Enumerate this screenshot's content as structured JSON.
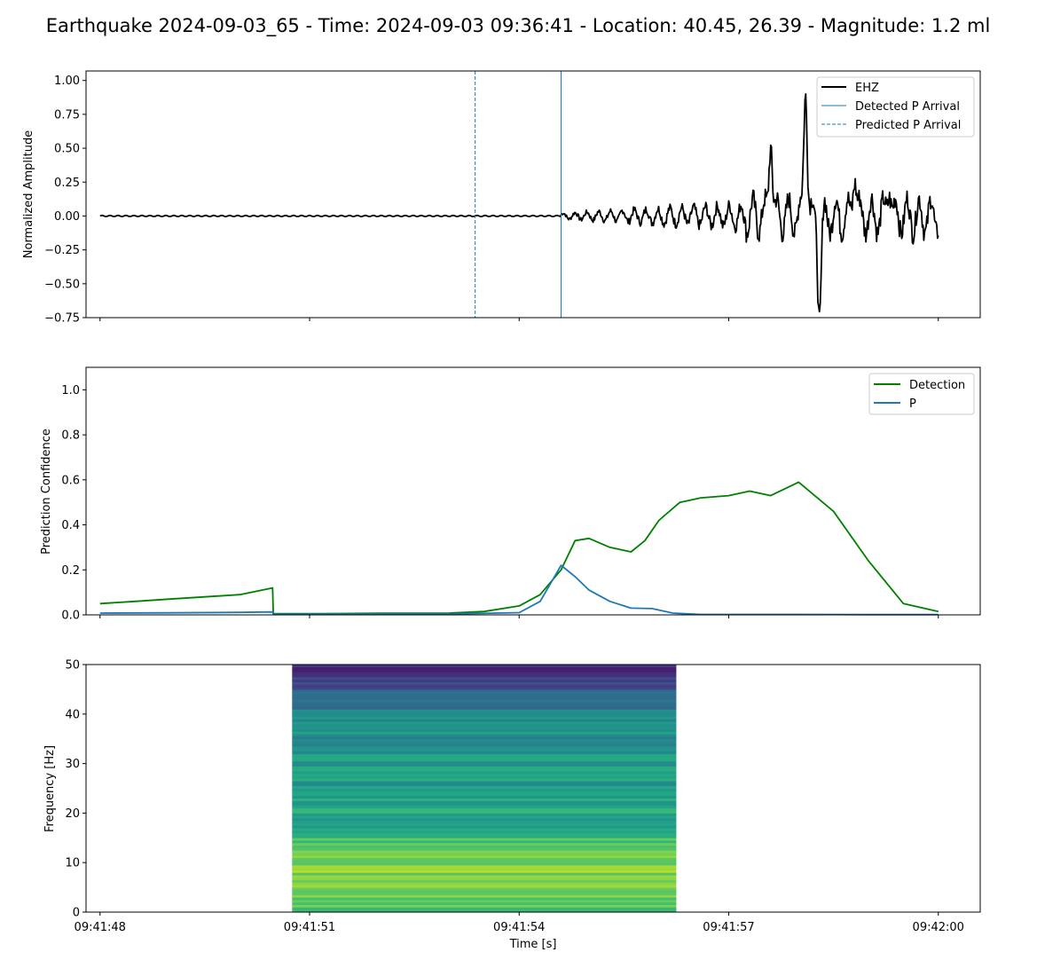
{
  "title": "Earthquake 2024-09-03_65 - Time: 2024-09-03 09:36:41 - Location: 40.45, 26.39 - Magnitude: 1.2 ml",
  "colors": {
    "waveform": "#000000",
    "detection": "#008000",
    "p_prob": "#1f77b4",
    "arrival": "#1f77b4"
  },
  "chart_data": [
    {
      "type": "line",
      "panel": "waveform",
      "ylabel": "Normalized Amplitude",
      "xlabel": "",
      "xlim": [
        -0.2,
        12.6
      ],
      "ylim": [
        -0.75,
        1.07
      ],
      "yticks": [
        "1.00",
        "0.75",
        "0.50",
        "0.25",
        "0.00",
        "−0.25",
        "−0.50",
        "−0.75"
      ],
      "ytick_values": [
        1.0,
        0.75,
        0.5,
        0.25,
        0.0,
        -0.25,
        -0.5,
        -0.75
      ],
      "legend_position": "upper right",
      "series": [
        {
          "name": "EHZ",
          "x_range": [
            0,
            12.0
          ],
          "peak_times": [
            9.6,
            10.1,
            10.3,
            10.8,
            11.3
          ],
          "peak_values": [
            0.62,
            1.0,
            -0.68,
            0.36,
            0.26
          ]
        }
      ],
      "vlines": [
        {
          "name": "Detected P Arrival",
          "x": 6.6,
          "style": "solid"
        },
        {
          "name": "Predicted P Arrival",
          "x": 5.37,
          "style": "dashed"
        }
      ]
    },
    {
      "type": "line",
      "panel": "probability",
      "ylabel": "Prediction Confidence",
      "xlabel": "",
      "xlim": [
        -0.2,
        12.6
      ],
      "ylim": [
        0.0,
        1.1
      ],
      "yticks": [
        "0.0",
        "0.2",
        "0.4",
        "0.6",
        "0.8",
        "1.0"
      ],
      "ytick_values": [
        0.0,
        0.2,
        0.4,
        0.6,
        0.8,
        1.0
      ],
      "legend_position": "upper right",
      "series": [
        {
          "name": "Detection",
          "x": [
            0,
            0.5,
            1.0,
            1.5,
            2.0,
            2.47,
            2.48,
            3.0,
            4.0,
            5.0,
            5.5,
            6.0,
            6.3,
            6.6,
            6.8,
            7.0,
            7.3,
            7.6,
            7.8,
            8.0,
            8.3,
            8.6,
            9.0,
            9.3,
            9.6,
            10.0,
            10.5,
            11.0,
            11.5,
            12.0
          ],
          "values": [
            0.05,
            0.06,
            0.07,
            0.08,
            0.09,
            0.12,
            0.005,
            0.005,
            0.007,
            0.008,
            0.015,
            0.04,
            0.09,
            0.2,
            0.33,
            0.34,
            0.3,
            0.28,
            0.33,
            0.42,
            0.5,
            0.52,
            0.53,
            0.55,
            0.53,
            0.59,
            0.46,
            0.24,
            0.05,
            0.015
          ]
        },
        {
          "name": "P",
          "x": [
            0,
            1.0,
            2.0,
            2.47,
            2.48,
            3.0,
            4.0,
            5.0,
            6.0,
            6.3,
            6.6,
            6.8,
            7.0,
            7.3,
            7.6,
            7.9,
            8.2,
            8.6,
            9.0,
            10.0,
            11.0,
            12.0
          ],
          "values": [
            0.008,
            0.009,
            0.011,
            0.013,
            0.003,
            0.003,
            0.004,
            0.004,
            0.01,
            0.06,
            0.22,
            0.17,
            0.11,
            0.06,
            0.03,
            0.028,
            0.008,
            0.002,
            0.002,
            0.002,
            0.001,
            0.001
          ]
        }
      ]
    },
    {
      "type": "heatmap",
      "panel": "spectrogram",
      "ylabel": "Frequency [Hz]",
      "xlabel": "Time [s]",
      "xlim": [
        -0.2,
        12.6
      ],
      "ylim": [
        0,
        50
      ],
      "yticks": [
        "0",
        "10",
        "20",
        "30",
        "40",
        "50"
      ],
      "ytick_values": [
        0,
        10,
        20,
        30,
        40,
        50
      ],
      "x_extent": [
        2.75,
        8.25
      ],
      "colormap": "viridis"
    }
  ],
  "xaxis": {
    "label": "Time [s]",
    "ticks": [
      "09:41:48",
      "09:41:51",
      "09:41:54",
      "09:41:57",
      "09:42:00"
    ],
    "tick_values": [
      0,
      3,
      6,
      9,
      12
    ]
  }
}
